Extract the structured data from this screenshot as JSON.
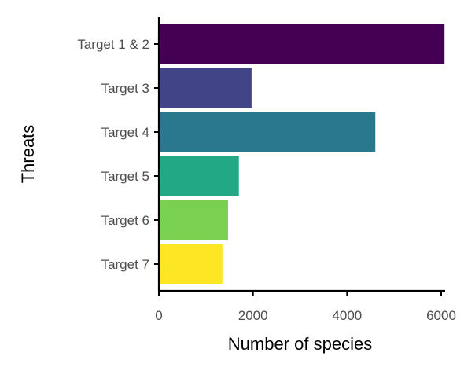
{
  "chart_data": {
    "type": "bar",
    "orientation": "horizontal",
    "categories": [
      "Target 1 & 2",
      "Target 3",
      "Target 4",
      "Target 5",
      "Target 6",
      "Target 7"
    ],
    "values": [
      6070,
      1970,
      4600,
      1700,
      1470,
      1350
    ],
    "colors": [
      "#440154",
      "#414487",
      "#2a788e",
      "#22a884",
      "#7ad151",
      "#fde725"
    ],
    "xlabel": "Number of species",
    "ylabel": "Threats",
    "xlim": [
      0,
      6000
    ],
    "xticks": [
      0,
      2000,
      4000,
      6000
    ],
    "xtick_labels": [
      "0",
      "2000",
      "4000",
      "6000"
    ],
    "grid": false,
    "legend": "none"
  }
}
